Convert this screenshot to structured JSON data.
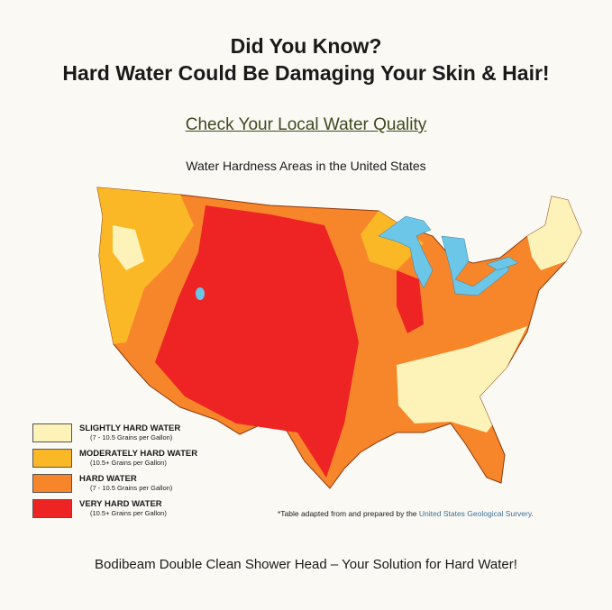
{
  "header": {
    "line1": "Did You Know?",
    "line2": "Hard Water Could Be Damaging Your Skin & Hair!"
  },
  "link": "Check Your Local Water Quality",
  "map_title": "Water Hardness Areas in the United States",
  "colors": {
    "slightly": "#fdf3b8",
    "moderately": "#fbb826",
    "hard": "#f7862a",
    "very": "#ee2424",
    "water": "#6cc6e8"
  },
  "legend": [
    {
      "name": "SLIGHTLY HARD WATER",
      "sub": "(7 - 10.5 Grains per Gallon)",
      "color": "#fdf3b8"
    },
    {
      "name": "MODERATELY HARD WATER",
      "sub": "(10.5+ Grains per Gallon)",
      "color": "#fbb826"
    },
    {
      "name": "HARD WATER",
      "sub": "(7 - 10.5 Grains per Gallon)",
      "color": "#f7862a"
    },
    {
      "name": "VERY HARD WATER",
      "sub": "(10.5+ Grains per Gallon)",
      "color": "#ee2424"
    }
  ],
  "note": {
    "text": "*Table adapted from and prepared by the ",
    "source": "United States Geological Survery",
    "end": "."
  },
  "footer": "Bodibeam Double Clean Shower Head – Your Solution for Hard Water!"
}
